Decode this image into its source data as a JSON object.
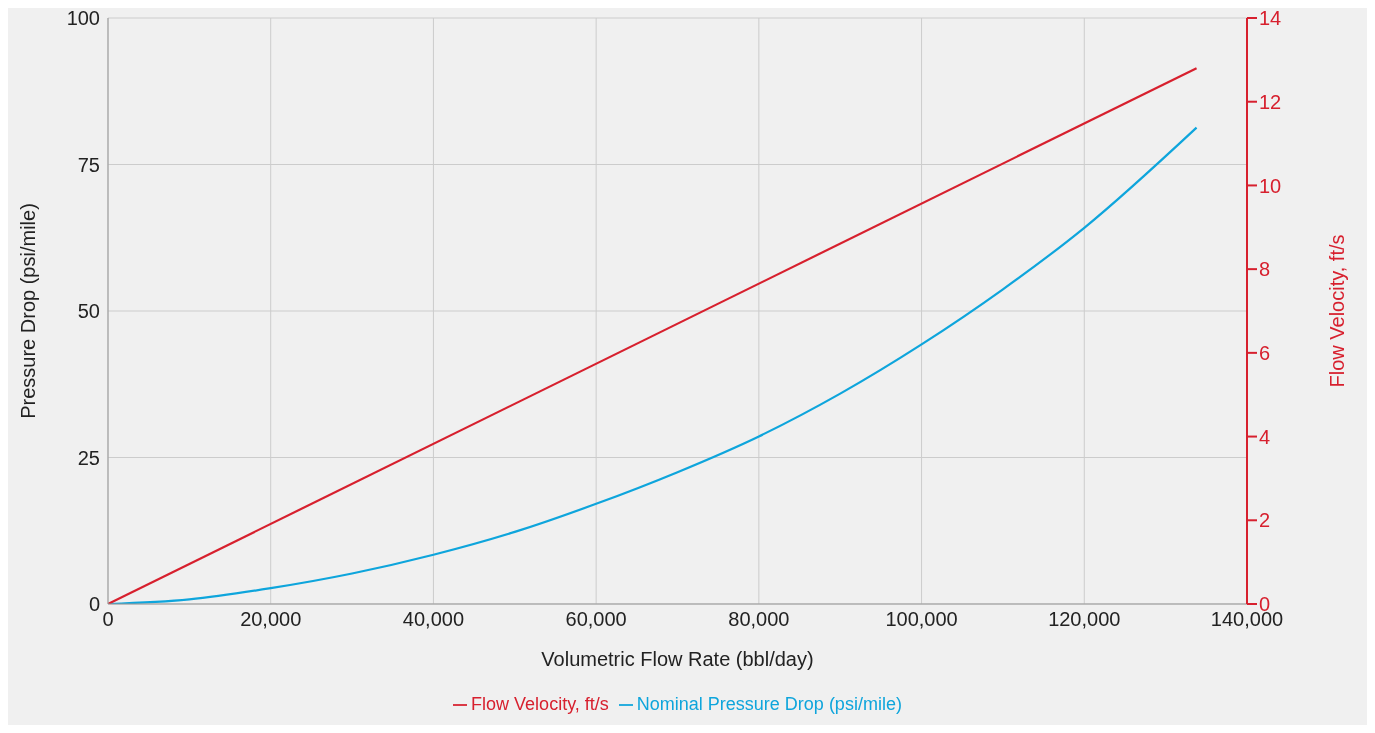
{
  "chart_data": {
    "type": "line",
    "xlabel": "Volumetric Flow Rate (bbl/day)",
    "ylabel": "Pressure Drop (psi/mile)",
    "y2label": "Flow Velocity, ft/s",
    "x": [
      0,
      10000,
      20000,
      30000,
      40000,
      50000,
      60000,
      70000,
      80000,
      90000,
      100000,
      110000,
      120000,
      133800
    ],
    "series": [
      {
        "name": "Nominal Pressure Drop (psi/mile)",
        "color": "#0ea5dc",
        "values": [
          0,
          0.8,
          2.7,
          5.2,
          8.4,
          12.3,
          17.1,
          22.5,
          28.6,
          35.9,
          44.3,
          53.7,
          64.2,
          81.3
        ]
      },
      {
        "name": "Flow Velocity, ft/s",
        "color": "#d7202e",
        "axis": "y2",
        "x": [
          0,
          133800
        ],
        "values": [
          0,
          12.8
        ]
      }
    ],
    "xlim": [
      0,
      140000
    ],
    "xticks": [
      {
        "value": 0,
        "label": "0"
      },
      {
        "value": 20000,
        "label": "20,000"
      },
      {
        "value": 40000,
        "label": "40,000"
      },
      {
        "value": 60000,
        "label": "60,000"
      },
      {
        "value": 80000,
        "label": "80,000"
      },
      {
        "value": 100000,
        "label": "100,000"
      },
      {
        "value": 120000,
        "label": "120,000"
      },
      {
        "value": 140000,
        "label": "140,000"
      }
    ],
    "ylim": [
      0,
      100
    ],
    "yticks": [
      0,
      25,
      50,
      75,
      100
    ],
    "y2lim": [
      0,
      14
    ],
    "y2ticks": [
      0,
      2,
      4,
      6,
      8,
      10,
      12,
      14
    ],
    "grid": true,
    "legend": "bottom",
    "marker": "none",
    "line_style": "solid"
  }
}
